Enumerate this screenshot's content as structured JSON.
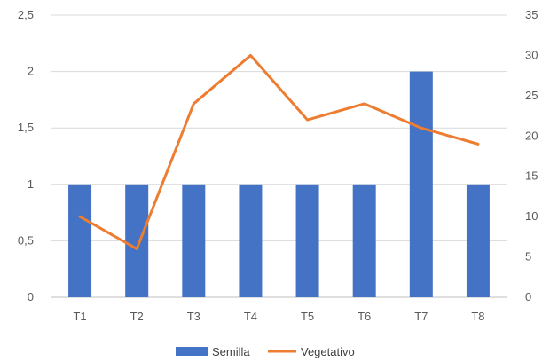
{
  "chart_data": {
    "type": "bar",
    "categories": [
      "T1",
      "T2",
      "T3",
      "T4",
      "T5",
      "T6",
      "T7",
      "T8"
    ],
    "series": [
      {
        "name": "Semilla",
        "type": "bar",
        "axis": "left",
        "color": "#4472C4",
        "values": [
          1,
          1,
          1,
          1,
          1,
          1,
          2,
          1
        ]
      },
      {
        "name": "Vegetativo",
        "type": "line",
        "axis": "right",
        "color": "#ED7D31",
        "values": [
          10,
          6,
          24,
          30,
          22,
          24,
          21,
          19
        ]
      }
    ],
    "y_left": {
      "ylim": [
        0,
        2.5
      ],
      "ticks": [
        "0",
        "0,5",
        "1",
        "1,5",
        "2",
        "2,5"
      ]
    },
    "y_right": {
      "ylim": [
        0,
        35
      ],
      "ticks": [
        "0",
        "5",
        "10",
        "15",
        "20",
        "25",
        "30",
        "35"
      ]
    },
    "grid": true,
    "legend": "bottom"
  }
}
